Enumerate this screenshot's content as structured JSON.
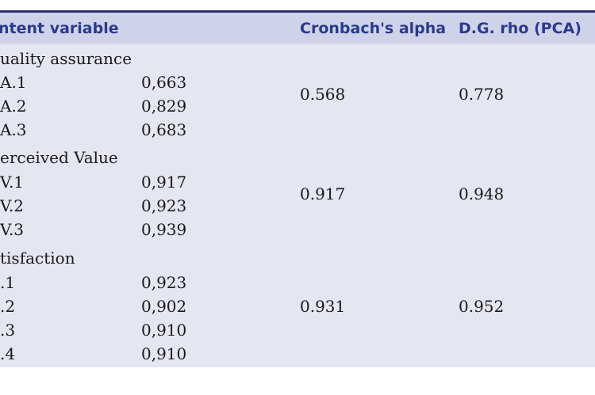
{
  "table": {
    "headers": {
      "latent_variable": "ntent variable",
      "cronbach_alpha": "Cronbach's alpha",
      "dg_rho": "D.G. rho (PCA)"
    },
    "groups": [
      {
        "name": "uality assurance",
        "cronbach_alpha": "0.568",
        "dg_rho": "0.778",
        "items": [
          {
            "label": "A.1",
            "loading": "0,663"
          },
          {
            "label": "A.2",
            "loading": "0,829"
          },
          {
            "label": "A.3",
            "loading": "0,683"
          }
        ]
      },
      {
        "name": "erceived Value",
        "cronbach_alpha": "0.917",
        "dg_rho": "0.948",
        "items": [
          {
            "label": "V.1",
            "loading": "0,917"
          },
          {
            "label": "V.2",
            "loading": "0,923"
          },
          {
            "label": "V.3",
            "loading": "0,939"
          }
        ]
      },
      {
        "name": "tisfaction",
        "cronbach_alpha": "0.931",
        "dg_rho": "0.952",
        "items": [
          {
            "label": ".1",
            "loading": "0,923"
          },
          {
            "label": ".2",
            "loading": "0,902"
          },
          {
            "label": ".3",
            "loading": "0,910"
          },
          {
            "label": ".4",
            "loading": "0,910"
          }
        ]
      }
    ]
  }
}
